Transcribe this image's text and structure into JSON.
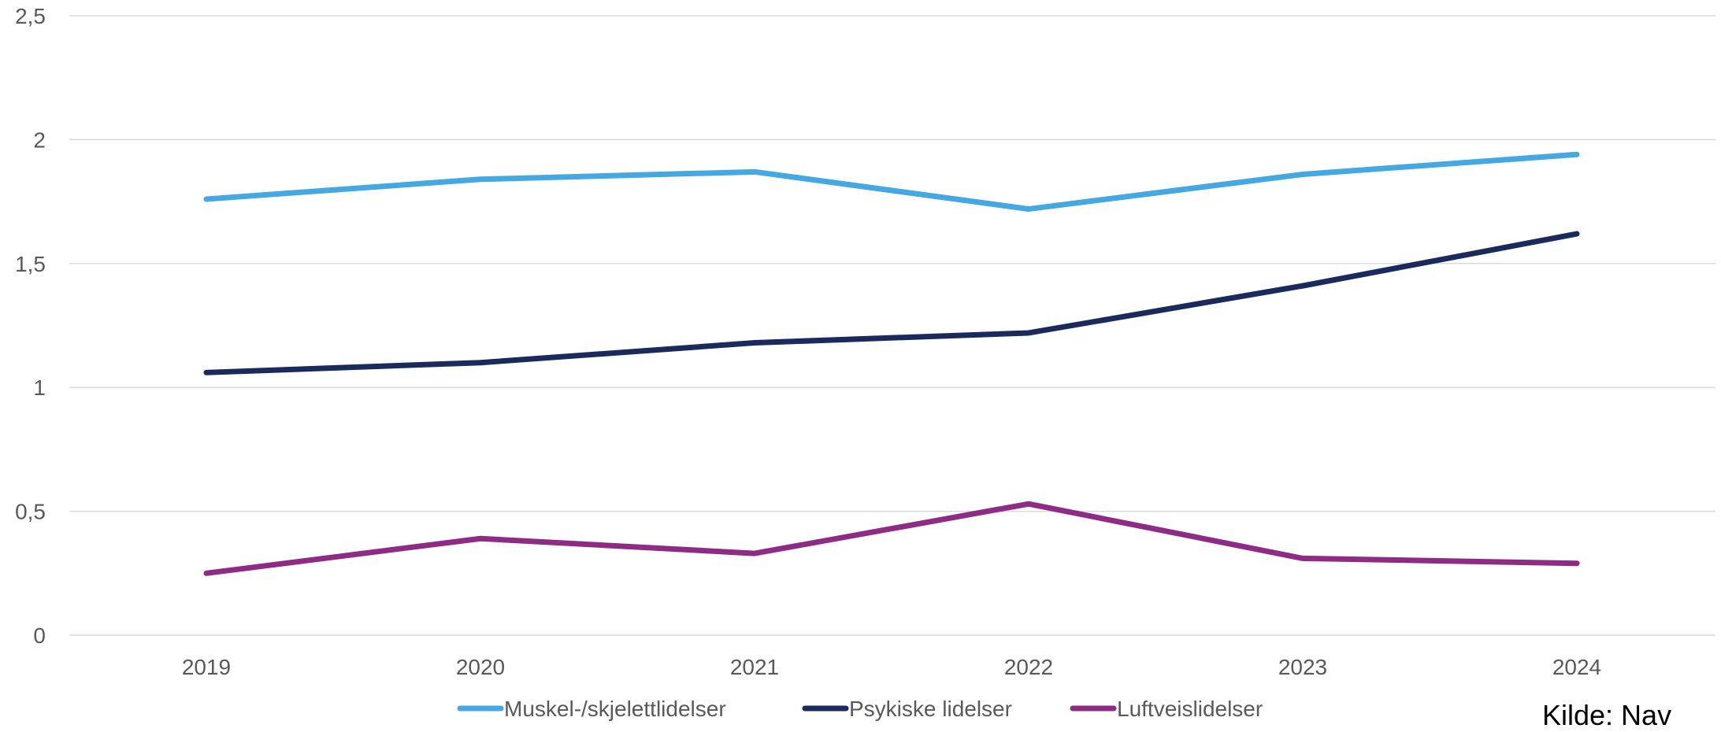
{
  "chart_data": {
    "type": "line",
    "categories": [
      "2019",
      "2020",
      "2021",
      "2022",
      "2023",
      "2024"
    ],
    "series": [
      {
        "name": "Muskel-/skjelettlidelser",
        "color": "#45a8e0",
        "values": [
          1.76,
          1.84,
          1.87,
          1.72,
          1.86,
          1.94
        ]
      },
      {
        "name": "Psykiske lidelser",
        "color": "#1b2a5c",
        "values": [
          1.06,
          1.1,
          1.18,
          1.22,
          1.41,
          1.62
        ]
      },
      {
        "name": "Luftveislidelser",
        "color": "#8e2c85",
        "values": [
          0.25,
          0.39,
          0.33,
          0.53,
          0.31,
          0.29
        ]
      }
    ],
    "ylim": [
      0,
      2.5
    ],
    "yticks": [
      0,
      0.5,
      1,
      1.5,
      2,
      2.5
    ],
    "ytick_labels": [
      "0",
      "0,5",
      "1",
      "1,5",
      "2",
      "2,5"
    ],
    "grid": true,
    "legend_position": "bottom",
    "source": "Kilde: Nav"
  }
}
